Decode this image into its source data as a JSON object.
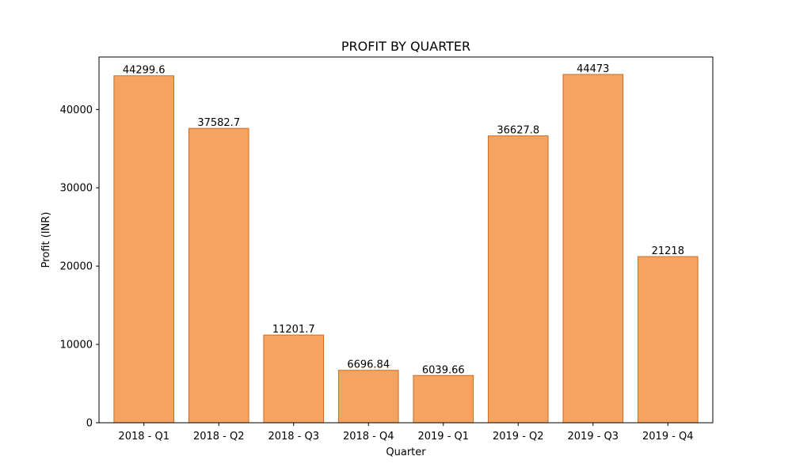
{
  "chart_data": {
    "type": "bar",
    "title": "PROFIT BY QUARTER",
    "xlabel": "Quarter",
    "ylabel": "Profit (INR)",
    "categories": [
      "2018 - Q1",
      "2018 - Q2",
      "2018 - Q3",
      "2018 - Q4",
      "2019 - Q1",
      "2019 - Q2",
      "2019 - Q3",
      "2019 - Q4"
    ],
    "values": [
      44299.6,
      37582.7,
      11201.7,
      6696.84,
      6039.66,
      36627.8,
      44473,
      21218
    ],
    "value_labels": [
      "44299.6",
      "37582.7",
      "11201.7",
      "6696.84",
      "6039.66",
      "36627.8",
      "44473",
      "21218"
    ],
    "ylim": [
      0,
      46697
    ],
    "yticks": [
      0,
      10000,
      20000,
      30000,
      40000
    ],
    "grid": false,
    "legend": "none",
    "colors": {
      "bar_fill": "#f4a460",
      "bar_edge": "#d2691e",
      "axis": "#000000"
    }
  }
}
